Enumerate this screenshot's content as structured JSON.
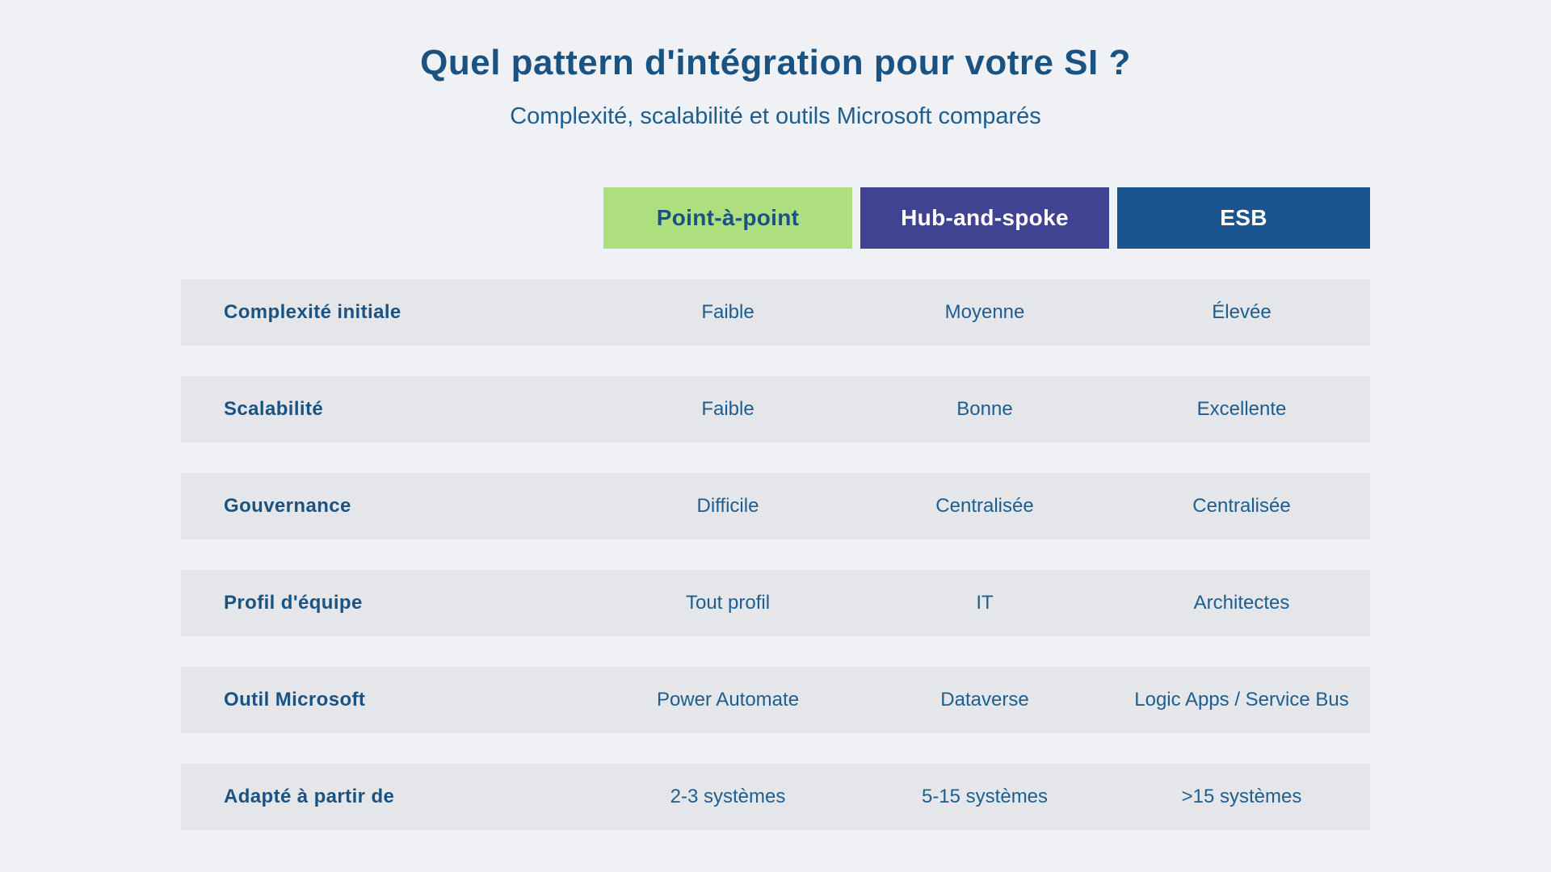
{
  "header": {
    "title": "Quel pattern d'intégration pour votre SI ?",
    "subtitle": "Complexité, scalabilité et outils Microsoft comparés"
  },
  "colors": {
    "background": "#eff1f5",
    "row_background": "#e4e6e9",
    "heading_text": "#1a5381",
    "body_text": "#1d5e8f",
    "point_a_point_bg": "#addf7f",
    "hub_and_spoke_bg": "#3f4392",
    "esb_bg": "#1a5590",
    "header_text_light": "#ffffff"
  },
  "table": {
    "columns": [
      {
        "id": "point-a-point",
        "label": "Point-à-point",
        "bg": "#addf7f",
        "text": "#1a5381"
      },
      {
        "id": "hub-and-spoke",
        "label": "Hub-and-spoke",
        "bg": "#3f4392",
        "text": "#ffffff"
      },
      {
        "id": "esb",
        "label": "ESB",
        "bg": "#1a5590",
        "text": "#ffffff"
      }
    ],
    "rows": [
      {
        "label": "Complexité initiale",
        "values": [
          "Faible",
          "Moyenne",
          "Élevée"
        ]
      },
      {
        "label": "Scalabilité",
        "values": [
          "Faible",
          "Bonne",
          "Excellente"
        ]
      },
      {
        "label": "Gouvernance",
        "values": [
          "Difficile",
          "Centralisée",
          "Centralisée"
        ]
      },
      {
        "label": "Profil d'équipe",
        "values": [
          "Tout profil",
          "IT",
          "Architectes"
        ]
      },
      {
        "label": "Outil Microsoft",
        "values": [
          "Power Automate",
          "Dataverse",
          "Logic Apps / Service Bus"
        ]
      },
      {
        "label": "Adapté à partir de",
        "values": [
          "2-3 systèmes",
          "5-15 systèmes",
          ">15 systèmes"
        ]
      }
    ]
  },
  "chart_data": {
    "type": "table",
    "title": "Quel pattern d'intégration pour votre SI ?",
    "subtitle": "Complexité, scalabilité et outils Microsoft comparés",
    "columns": [
      "Point-à-point",
      "Hub-and-spoke",
      "ESB"
    ],
    "row_labels": [
      "Complexité initiale",
      "Scalabilité",
      "Gouvernance",
      "Profil d'équipe",
      "Outil Microsoft",
      "Adapté à partir de"
    ],
    "rows": [
      [
        "Faible",
        "Moyenne",
        "Élevée"
      ],
      [
        "Faible",
        "Bonne",
        "Excellente"
      ],
      [
        "Difficile",
        "Centralisée",
        "Centralisée"
      ],
      [
        "Tout profil",
        "IT",
        "Architectes"
      ],
      [
        "Power Automate",
        "Dataverse",
        "Logic Apps / Service Bus"
      ],
      [
        "2-3 systèmes",
        "5-15 systèmes",
        ">15 systèmes"
      ]
    ],
    "legend_position": "none",
    "grid": false
  }
}
